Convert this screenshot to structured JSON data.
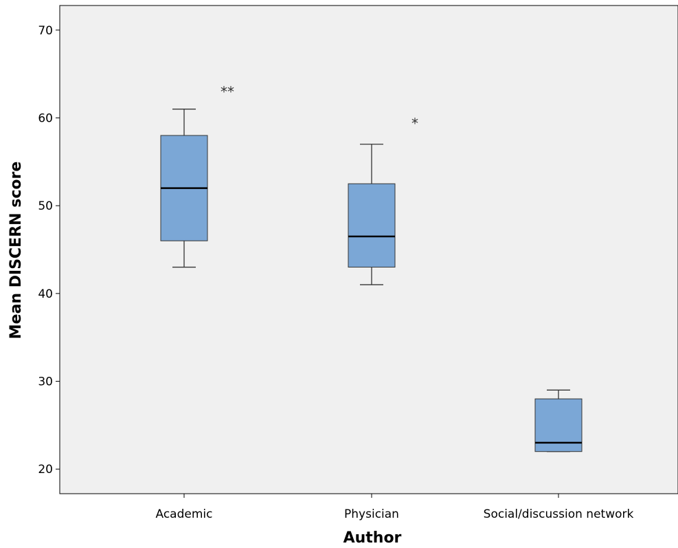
{
  "colors": {
    "plot_background": "#f0f0f0",
    "box_fill": "#7ba7d6",
    "box_stroke": "#333333",
    "axis": "#000000"
  },
  "chart_data": {
    "type": "box",
    "title": "",
    "xlabel": "Author",
    "ylabel": "Mean DISCERN score",
    "ylim": [
      17.2,
      72.8
    ],
    "yticks": [
      20,
      30,
      40,
      50,
      60,
      70
    ],
    "ytick_labels": [
      "20",
      "30",
      "40",
      "50",
      "60",
      "70"
    ],
    "grid": false,
    "categories": [
      "Academic",
      "Physician",
      "Social/discussion network"
    ],
    "boxes": [
      {
        "category": "Academic",
        "whisker_low": 43,
        "q1": 46,
        "median": 52,
        "q3": 58,
        "whisker_high": 61
      },
      {
        "category": "Physician",
        "whisker_low": 41,
        "q1": 43,
        "median": 46.5,
        "q3": 52.5,
        "whisker_high": 57
      },
      {
        "category": "Social/discussion network",
        "whisker_low": 22,
        "q1": 22,
        "median": 23,
        "q3": 28,
        "whisker_high": 29
      }
    ],
    "annotations": [
      {
        "text": "**",
        "category": "Academic",
        "y": 63.2
      },
      {
        "text": "*",
        "category": "Physician",
        "y": 59.6
      }
    ]
  }
}
